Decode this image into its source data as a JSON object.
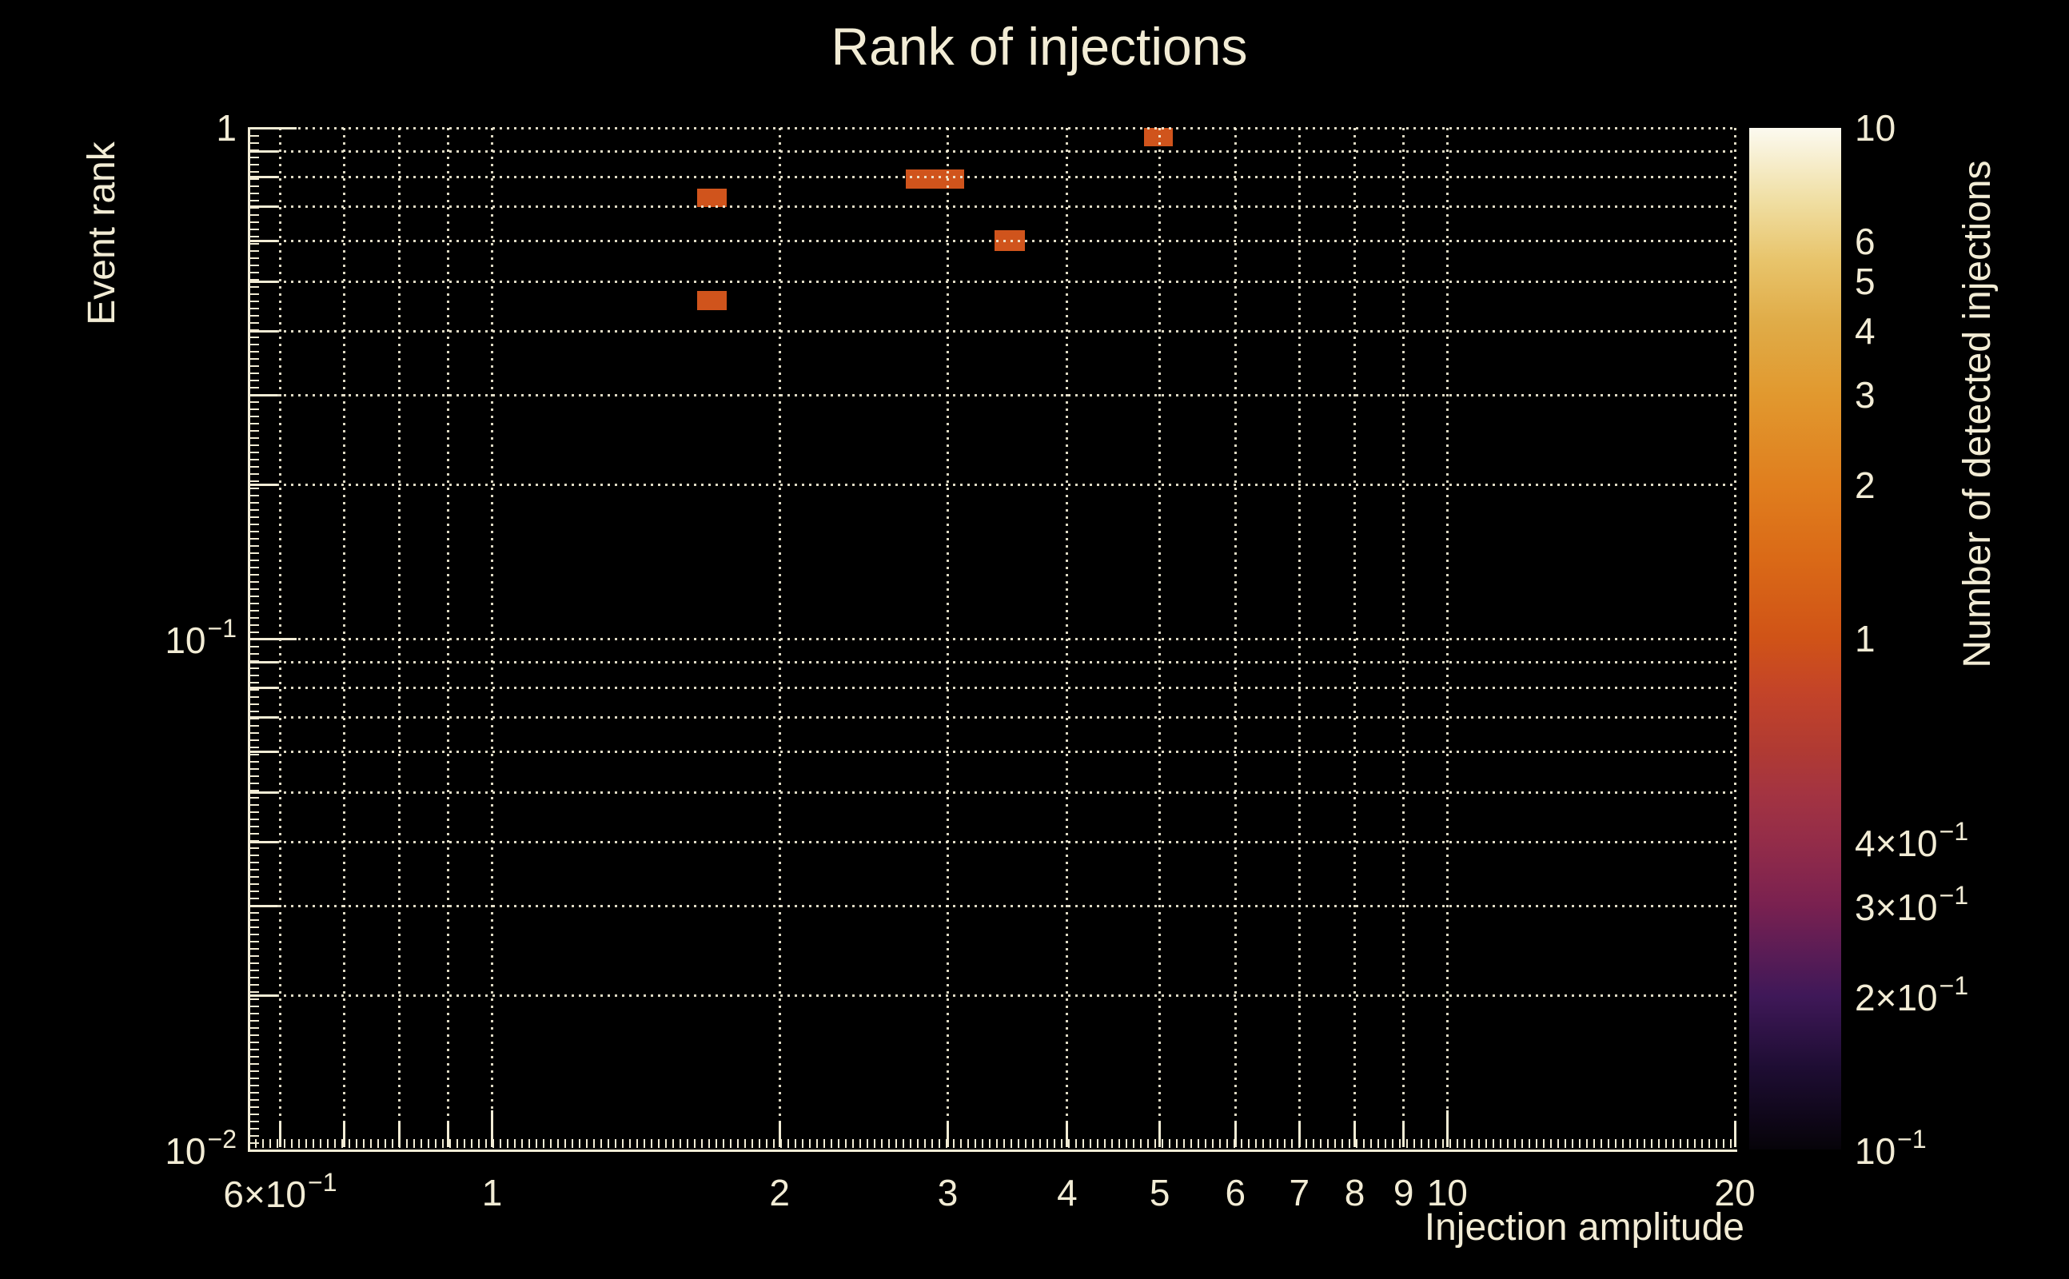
{
  "colors": {
    "background": "#000000",
    "foreground": "#f2ecd5",
    "grid": "#f2ecd5",
    "bin_fill": "#d0541c",
    "colorbar_tick": "#111111"
  },
  "chart_data": {
    "type": "heatmap",
    "title": "Rank of injections",
    "xlabel": "Injection amplitude",
    "ylabel": "Event rank",
    "zlabel": "Number of detected injections",
    "xscale": "log",
    "yscale": "log",
    "zscale": "log",
    "xlim": [
      0.555,
      20
    ],
    "ylim": [
      0.01,
      1
    ],
    "zlim": [
      0.1,
      10
    ],
    "grid": "dotted, on all ticks",
    "legend_position": "right colorbar",
    "x_ticks": [
      {
        "value": 0.6,
        "base": "6×10",
        "exp": "−1"
      },
      {
        "value": 1,
        "base": "1",
        "exp": ""
      },
      {
        "value": 2,
        "base": "2",
        "exp": ""
      },
      {
        "value": 3,
        "base": "3",
        "exp": ""
      },
      {
        "value": 4,
        "base": "4",
        "exp": ""
      },
      {
        "value": 5,
        "base": "5",
        "exp": ""
      },
      {
        "value": 6,
        "base": "6",
        "exp": ""
      },
      {
        "value": 7,
        "base": "7",
        "exp": ""
      },
      {
        "value": 8,
        "base": "8",
        "exp": ""
      },
      {
        "value": 9,
        "base": "9",
        "exp": ""
      },
      {
        "value": 10,
        "base": "10",
        "exp": ""
      },
      {
        "value": 20,
        "base": "20",
        "exp": ""
      }
    ],
    "x_grid_values": [
      0.6,
      0.7,
      0.8,
      0.9,
      1,
      2,
      3,
      4,
      5,
      6,
      7,
      8,
      9,
      10,
      20
    ],
    "y_ticks": [
      {
        "value": 1,
        "base": "1",
        "exp": ""
      },
      {
        "value": 0.1,
        "base": "10",
        "exp": "−1"
      },
      {
        "value": 0.01,
        "base": "10",
        "exp": "−2"
      }
    ],
    "y_grid_values": [
      1,
      0.9,
      0.8,
      0.7,
      0.6,
      0.5,
      0.4,
      0.3,
      0.2,
      0.1,
      0.09,
      0.08,
      0.07,
      0.06,
      0.05,
      0.04,
      0.03,
      0.02
    ],
    "y_major_values": [
      1,
      0.1,
      0.01
    ],
    "z_ticks": [
      {
        "value": 10,
        "base": "10",
        "exp": ""
      },
      {
        "value": 6,
        "base": "6",
        "exp": ""
      },
      {
        "value": 5,
        "base": "5",
        "exp": ""
      },
      {
        "value": 4,
        "base": "4",
        "exp": ""
      },
      {
        "value": 3,
        "base": "3",
        "exp": ""
      },
      {
        "value": 2,
        "base": "2",
        "exp": ""
      },
      {
        "value": 1,
        "base": "1",
        "exp": ""
      },
      {
        "value": 0.4,
        "base": "4×10",
        "exp": "−1"
      },
      {
        "value": 0.3,
        "base": "3×10",
        "exp": "−1"
      },
      {
        "value": 0.2,
        "base": "2×10",
        "exp": "−1"
      },
      {
        "value": 0.1,
        "base": "10",
        "exp": "−1"
      }
    ],
    "z_minor_tick_values": [
      9,
      8,
      7,
      6,
      5,
      4,
      3,
      2,
      0.9,
      0.8,
      0.7,
      0.6,
      0.5,
      0.4,
      0.3,
      0.2
    ],
    "z_major_tick_values": [
      1
    ],
    "bins": [
      {
        "x_range": [
          1.64,
          1.76
        ],
        "y_range": [
          0.7,
          0.76
        ],
        "count": 1
      },
      {
        "x_range": [
          1.64,
          1.76
        ],
        "y_range": [
          0.44,
          0.48
        ],
        "count": 1
      },
      {
        "x_range": [
          2.71,
          3.12
        ],
        "y_range": [
          0.76,
          0.83
        ],
        "count": 1
      },
      {
        "x_range": [
          3.36,
          3.61
        ],
        "y_range": [
          0.575,
          0.63
        ],
        "count": 1
      },
      {
        "x_range": [
          4.81,
          5.16
        ],
        "y_range": [
          0.92,
          1.0
        ],
        "count": 1
      }
    ],
    "palette_stops_bottom_to_top": [
      {
        "f": 0.0,
        "color": "#060309"
      },
      {
        "f": 0.08,
        "color": "#1e0d33"
      },
      {
        "f": 0.15,
        "color": "#3f1858"
      },
      {
        "f": 0.2,
        "color": "#5f1d55"
      },
      {
        "f": 0.24,
        "color": "#7a2150"
      },
      {
        "f": 0.3,
        "color": "#932c49"
      },
      {
        "f": 0.35,
        "color": "#a43441"
      },
      {
        "f": 0.39,
        "color": "#b03a33"
      },
      {
        "f": 0.45,
        "color": "#c44428"
      },
      {
        "f": 0.5,
        "color": "#d05317"
      },
      {
        "f": 0.58,
        "color": "#da6a17"
      },
      {
        "f": 0.65,
        "color": "#e07e1e"
      },
      {
        "f": 0.74,
        "color": "#e1992f"
      },
      {
        "f": 0.81,
        "color": "#e0ac48"
      },
      {
        "f": 0.87,
        "color": "#e8c46b"
      },
      {
        "f": 0.93,
        "color": "#f0dfa4"
      },
      {
        "f": 1.0,
        "color": "#fcfaf0"
      }
    ]
  }
}
